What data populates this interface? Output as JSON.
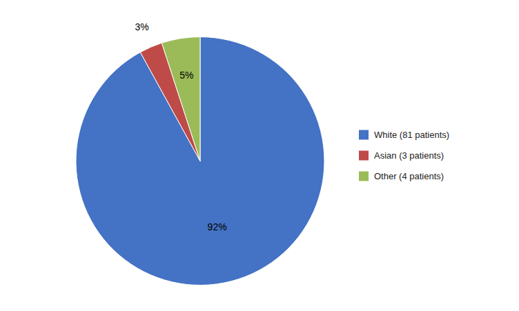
{
  "chart_data": {
    "type": "pie",
    "categories": [
      "White (81 patients)",
      "Asian (3 patients)",
      "Other (4 patients)"
    ],
    "values": [
      92,
      3,
      5
    ],
    "value_labels": [
      "92%",
      "3%",
      "5%"
    ],
    "colors": [
      "#4472C4",
      "#BE4B48",
      "#9BBB59"
    ],
    "data_labels": true,
    "legend": "right"
  }
}
